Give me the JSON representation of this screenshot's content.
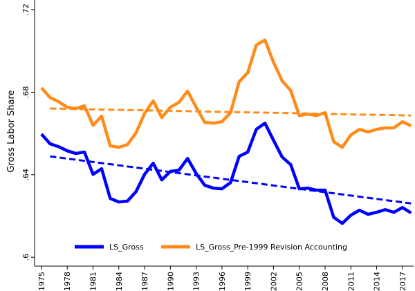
{
  "chart_data": {
    "type": "line",
    "y_label": "Gross Labor Share",
    "x": [
      1975,
      1976,
      1977,
      1978,
      1979,
      1980,
      1981,
      1982,
      1983,
      1984,
      1985,
      1986,
      1987,
      1988,
      1989,
      1990,
      1991,
      1992,
      1993,
      1994,
      1995,
      1996,
      1997,
      1998,
      1999,
      2000,
      2001,
      2002,
      2003,
      2004,
      2005,
      2006,
      2007,
      2008,
      2009,
      2010,
      2011,
      2012,
      2013,
      2014,
      2015,
      2016,
      2017,
      2018
    ],
    "series": [
      {
        "name": "LS_Gross",
        "color": "#0000ff",
        "values": [
          0.6597,
          0.655,
          0.6536,
          0.6516,
          0.6503,
          0.651,
          0.6402,
          0.6429,
          0.6285,
          0.6268,
          0.6272,
          0.6318,
          0.6402,
          0.6456,
          0.6375,
          0.6416,
          0.6422,
          0.6479,
          0.6406,
          0.6349,
          0.6335,
          0.6332,
          0.6362,
          0.6489,
          0.651,
          0.662,
          0.665,
          0.6567,
          0.6486,
          0.6449,
          0.6332,
          0.6335,
          0.6325,
          0.6325,
          0.6194,
          0.6164,
          0.6204,
          0.6228,
          0.6208,
          0.6218,
          0.6231,
          0.6218,
          0.6241,
          0.6215
        ]
      },
      {
        "name": "LS_Gross_Pre-1999 Revision Accounting",
        "color": "#ff8c1a",
        "values": [
          0.6821,
          0.6774,
          0.6754,
          0.6727,
          0.6721,
          0.6734,
          0.664,
          0.6684,
          0.654,
          0.6533,
          0.6546,
          0.6603,
          0.6697,
          0.6758,
          0.6677,
          0.6727,
          0.6751,
          0.6805,
          0.6727,
          0.6654,
          0.665,
          0.6657,
          0.6701,
          0.6851,
          0.6895,
          0.7029,
          0.7053,
          0.6945,
          0.6855,
          0.6808,
          0.6687,
          0.6694,
          0.6687,
          0.6701,
          0.656,
          0.6533,
          0.6593,
          0.662,
          0.6607,
          0.662,
          0.6627,
          0.6627,
          0.6657,
          0.6637
        ]
      }
    ],
    "trend_lines": [
      {
        "color": "#0000ff",
        "style": "dashed",
        "x": [
          1976,
          2018
        ],
        "values": [
          0.6489,
          0.6261
        ]
      },
      {
        "color": "#ff8c1a",
        "style": "dashed",
        "x": [
          1976,
          2018
        ],
        "values": [
          0.6721,
          0.6687
        ]
      }
    ],
    "xlim": [
      1974.2,
      2018.3
    ],
    "ylim": [
      0.5957,
      0.7247
    ],
    "xticks": [
      1975,
      1978,
      1981,
      1984,
      1987,
      1990,
      1993,
      1996,
      1999,
      2002,
      2005,
      2008,
      2011,
      2014,
      2017
    ],
    "yticks": [
      {
        "value": 0.6,
        "label": ".6"
      },
      {
        "value": 0.64,
        "label": ".64"
      },
      {
        "value": 0.68,
        "label": ".68"
      },
      {
        "value": 0.72,
        "label": ".72"
      }
    ],
    "legend": "bottom"
  }
}
